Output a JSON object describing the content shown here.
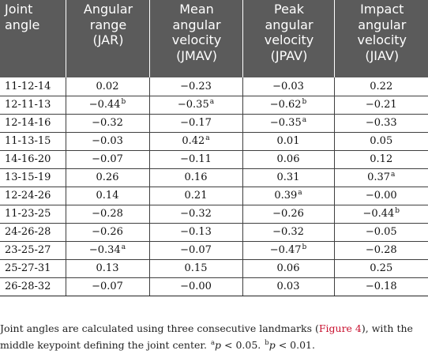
{
  "table": {
    "headers": [
      [
        "Joint",
        "angle"
      ],
      [
        "Angular",
        "range",
        "(JAR)"
      ],
      [
        "Mean",
        "angular",
        "velocity",
        "(JMAV)"
      ],
      [
        "Peak",
        "angular",
        "velocity",
        "(JPAV)"
      ],
      [
        "Impact",
        "angular",
        "velocity",
        "(JIAV)"
      ]
    ],
    "rows": [
      {
        "joint": "11-12-14",
        "cells": [
          {
            "v": "0.02",
            "s": ""
          },
          {
            "v": "−0.23",
            "s": ""
          },
          {
            "v": "−0.03",
            "s": ""
          },
          {
            "v": "0.22",
            "s": ""
          }
        ]
      },
      {
        "joint": "12-11-13",
        "cells": [
          {
            "v": "−0.44",
            "s": "b"
          },
          {
            "v": "−0.35",
            "s": "a"
          },
          {
            "v": "−0.62",
            "s": "b"
          },
          {
            "v": "−0.21",
            "s": ""
          }
        ]
      },
      {
        "joint": "12-14-16",
        "cells": [
          {
            "v": "−0.32",
            "s": ""
          },
          {
            "v": "−0.17",
            "s": ""
          },
          {
            "v": "−0.35",
            "s": "a"
          },
          {
            "v": "−0.33",
            "s": ""
          }
        ]
      },
      {
        "joint": "11-13-15",
        "cells": [
          {
            "v": "−0.03",
            "s": ""
          },
          {
            "v": "0.42",
            "s": "a"
          },
          {
            "v": "0.01",
            "s": ""
          },
          {
            "v": "0.05",
            "s": ""
          }
        ]
      },
      {
        "joint": "14-16-20",
        "cells": [
          {
            "v": "−0.07",
            "s": ""
          },
          {
            "v": "−0.11",
            "s": ""
          },
          {
            "v": "0.06",
            "s": ""
          },
          {
            "v": "0.12",
            "s": ""
          }
        ]
      },
      {
        "joint": "13-15-19",
        "cells": [
          {
            "v": "0.26",
            "s": ""
          },
          {
            "v": "0.16",
            "s": ""
          },
          {
            "v": "0.31",
            "s": ""
          },
          {
            "v": "0.37",
            "s": "a"
          }
        ]
      },
      {
        "joint": "12-24-26",
        "cells": [
          {
            "v": "0.14",
            "s": ""
          },
          {
            "v": "0.21",
            "s": ""
          },
          {
            "v": "0.39",
            "s": "a"
          },
          {
            "v": "−0.00",
            "s": ""
          }
        ]
      },
      {
        "joint": "11-23-25",
        "cells": [
          {
            "v": "−0.28",
            "s": ""
          },
          {
            "v": "−0.32",
            "s": ""
          },
          {
            "v": "−0.26",
            "s": ""
          },
          {
            "v": "−0.44",
            "s": "b"
          }
        ]
      },
      {
        "joint": "24-26-28",
        "cells": [
          {
            "v": "−0.26",
            "s": ""
          },
          {
            "v": "−0.13",
            "s": ""
          },
          {
            "v": "−0.32",
            "s": ""
          },
          {
            "v": "−0.05",
            "s": ""
          }
        ]
      },
      {
        "joint": "23-25-27",
        "cells": [
          {
            "v": "−0.34",
            "s": "a"
          },
          {
            "v": "−0.07",
            "s": ""
          },
          {
            "v": "−0.47",
            "s": "b"
          },
          {
            "v": "−0.28",
            "s": ""
          }
        ]
      },
      {
        "joint": "25-27-31",
        "cells": [
          {
            "v": "0.13",
            "s": ""
          },
          {
            "v": "0.15",
            "s": ""
          },
          {
            "v": "0.06",
            "s": ""
          },
          {
            "v": "0.25",
            "s": ""
          }
        ]
      },
      {
        "joint": "26-28-32",
        "cells": [
          {
            "v": "−0.07",
            "s": ""
          },
          {
            "v": "−0.00",
            "s": ""
          },
          {
            "v": "0.03",
            "s": ""
          },
          {
            "v": "−0.18",
            "s": ""
          }
        ]
      }
    ]
  },
  "footnote": {
    "text_before_link": "Joint angles are calculated using three consecutive landmarks (",
    "link_text": "Figure 4",
    "text_after_link": "), with the middle keypoint defining the joint center. ",
    "sig_a_sup": "a",
    "sig_a_var": "p",
    "sig_a_rest": " < 0.05. ",
    "sig_b_sup": "b",
    "sig_b_var": "p",
    "sig_b_rest": " < 0.01."
  },
  "colors": {
    "header_bg": "#5b5b5b",
    "header_text": "#ffffff",
    "link": "#c8102e",
    "rule": "#3f3f3f"
  }
}
